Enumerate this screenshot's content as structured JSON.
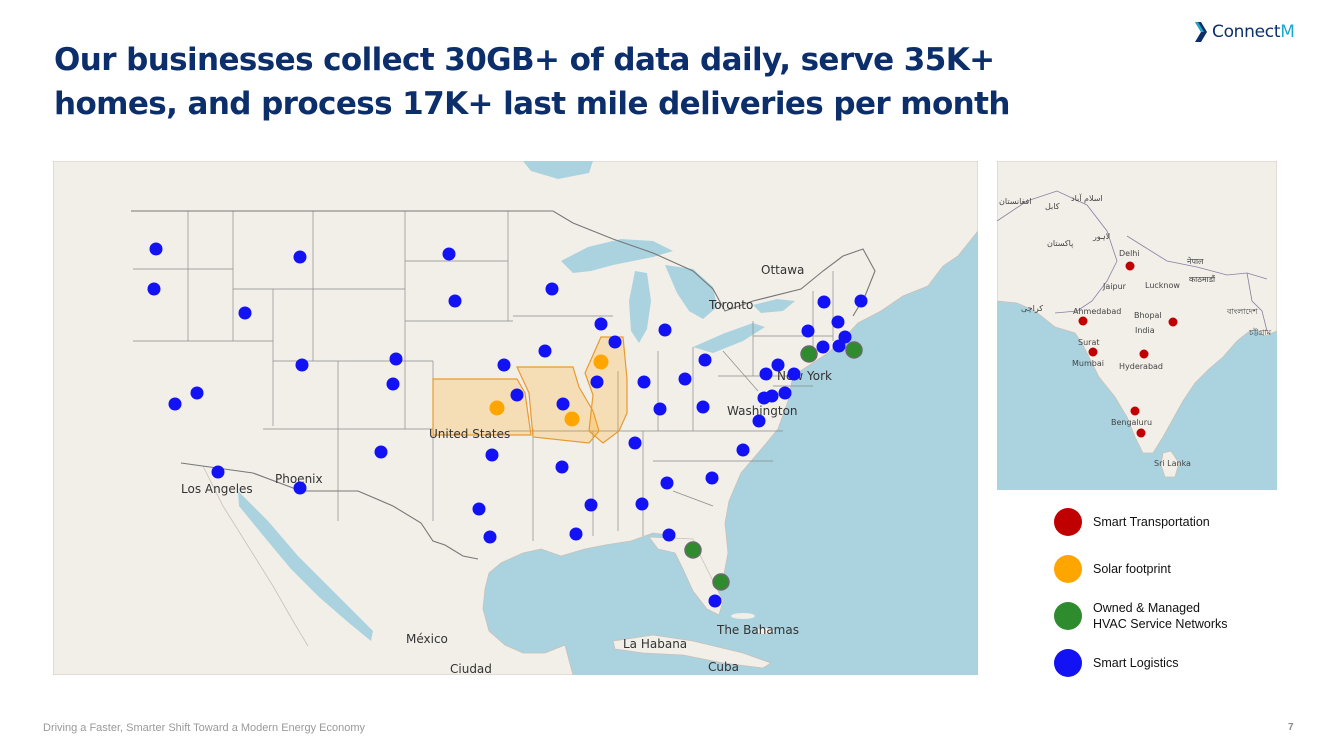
{
  "slide": {
    "title_line1": "Our businesses collect 30GB+ of data daily, serve 35K+",
    "title_line2": "homes, and process 17K+ last mile deliveries per month",
    "footer": "Driving a Faster, Smarter Shift Toward a Modern Energy Economy",
    "page_number": "7"
  },
  "logo": {
    "part1": "Connect",
    "part2": "M"
  },
  "colors": {
    "title": "#0c2e6b",
    "smart_transportation": "#c00000",
    "solar": "#ffa500",
    "hvac": "#2e8b2e",
    "logistics": "#1212f5",
    "water": "#aad3df",
    "land": "#f2efe9"
  },
  "us_map": {
    "labels": {
      "ottawa": "Ottawa",
      "toronto": "Toronto",
      "new_york": "New York",
      "washington": "Washington",
      "united_states": "United States",
      "phoenix": "Phoenix",
      "los_angeles": "Los Angeles",
      "mexico": "México",
      "ciudad": "Ciudad",
      "la_habana": "La Habana",
      "cuba": "Cuba",
      "bahamas": "The Bahamas"
    }
  },
  "india_map": {
    "labels": {
      "delhi": "Delhi",
      "jaipur": "Jaipur",
      "lucknow": "Lucknow",
      "ahmedabad": "Ahmedabad",
      "bhopal": "Bhopal",
      "india": "India",
      "surat": "Surat",
      "mumbai": "Mumbai",
      "hyderabad": "Hyderabad",
      "bengaluru": "Bengaluru",
      "sri_lanka": "Sri Lanka",
      "afghanistan": "افغانستان",
      "kabul": "کابل",
      "islamabad": "اسلام آباد",
      "pakistan": "پاکستان",
      "lahore": "لاہور",
      "karachi": "کراچی",
      "nepal": "नेपाल",
      "kathmandu": "काठमाडौं",
      "bangladesh": "বাংলাদেশ",
      "chattogram": "চট্টগ্রাম"
    }
  },
  "legend": {
    "items": [
      {
        "label": "Smart Transportation"
      },
      {
        "label": "Solar footprint"
      },
      {
        "label": "Owned & Managed\nHVAC Service Networks"
      },
      {
        "label": "Smart Logistics"
      }
    ]
  }
}
